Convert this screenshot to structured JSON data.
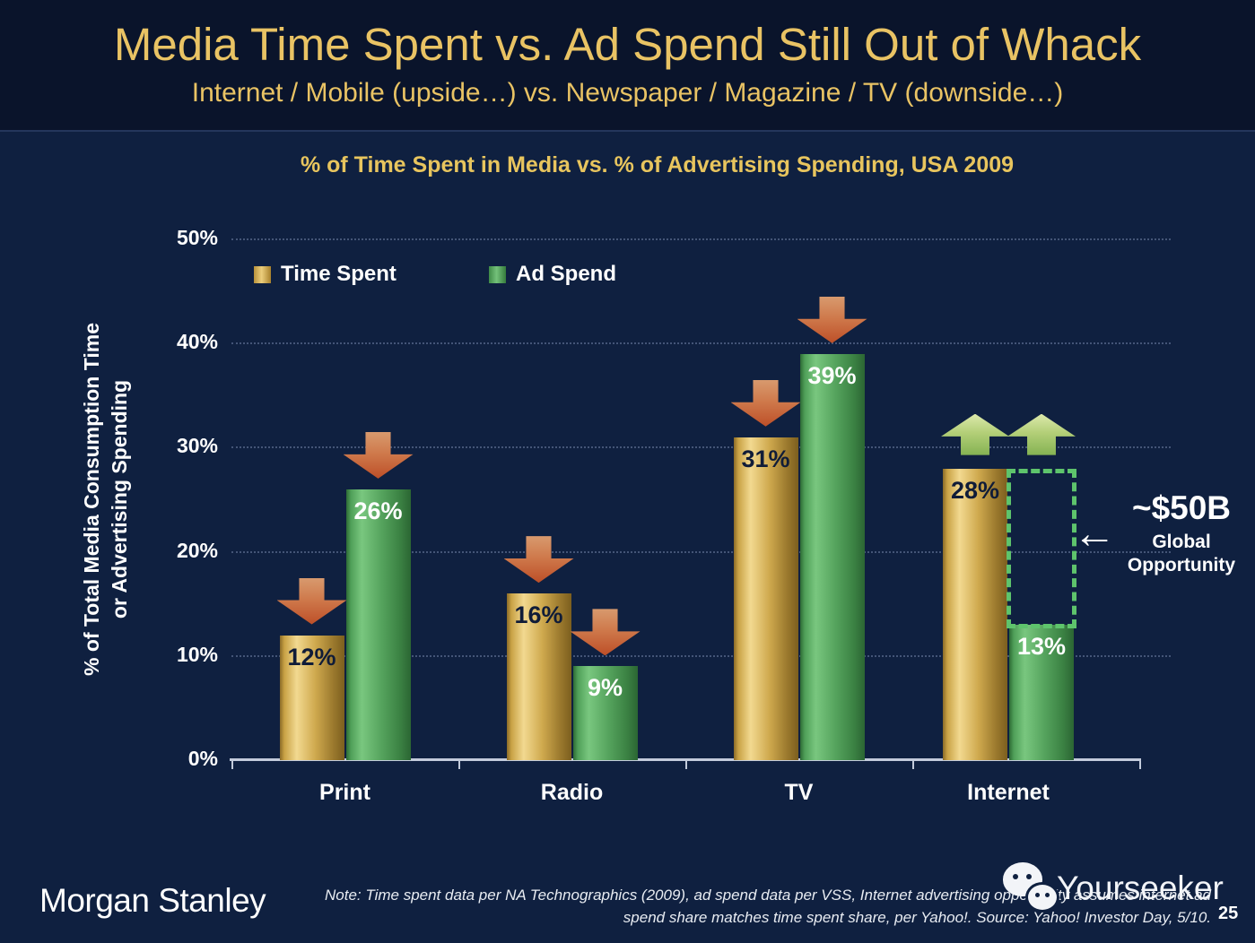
{
  "slide": {
    "title": "Media Time Spent vs. Ad Spend Still Out of Whack",
    "subtitle": "Internet / Mobile (upside…) vs. Newspaper / Magazine / TV (downside…)"
  },
  "chart_data": {
    "type": "bar",
    "title": "% of Time Spent in Media vs. % of Advertising Spending, USA 2009",
    "categories": [
      "Print",
      "Radio",
      "TV",
      "Internet"
    ],
    "series": [
      {
        "name": "Time Spent",
        "values": [
          12,
          16,
          31,
          28
        ]
      },
      {
        "name": "Ad Spend",
        "values": [
          26,
          9,
          39,
          13
        ]
      }
    ],
    "unit": "%",
    "ylabel_lines": [
      "% of Total Media Consumption Time",
      "or Advertising Spending"
    ],
    "ylim": [
      0,
      50
    ],
    "yticks": [
      50,
      40,
      30,
      20,
      10,
      0
    ],
    "grid": "dotted-horizontal",
    "legend_position": "top-left",
    "trend_arrows": [
      "down",
      "down",
      "down",
      "up"
    ],
    "annotation": {
      "value": "~$50B",
      "line1": "Global",
      "line2": "Opportunity"
    }
  },
  "icons": {
    "left_arrow_icon": "←"
  },
  "colors": {
    "accent_gold": "#e9c364",
    "time_spent_bar": "#d9b35c",
    "ad_spend_bar": "#57a85e",
    "down_arrow": "#c25a2e",
    "up_arrow": "#abc971",
    "opportunity_outline": "#5ec46c",
    "background": "#0f2040",
    "header_background": "#0a142b"
  },
  "footer": {
    "logo": "Morgan Stanley",
    "note_line1": "Note: Time spent data per NA Technographics (2009), ad spend data per VSS, Internet advertising opportunity assumes internet ad",
    "note_line2": "spend share matches time spent share, per Yahoo!. Source: Yahoo! Investor Day, 5/10.",
    "page_number": "25"
  },
  "watermark": {
    "brand": "Yourseeker"
  }
}
